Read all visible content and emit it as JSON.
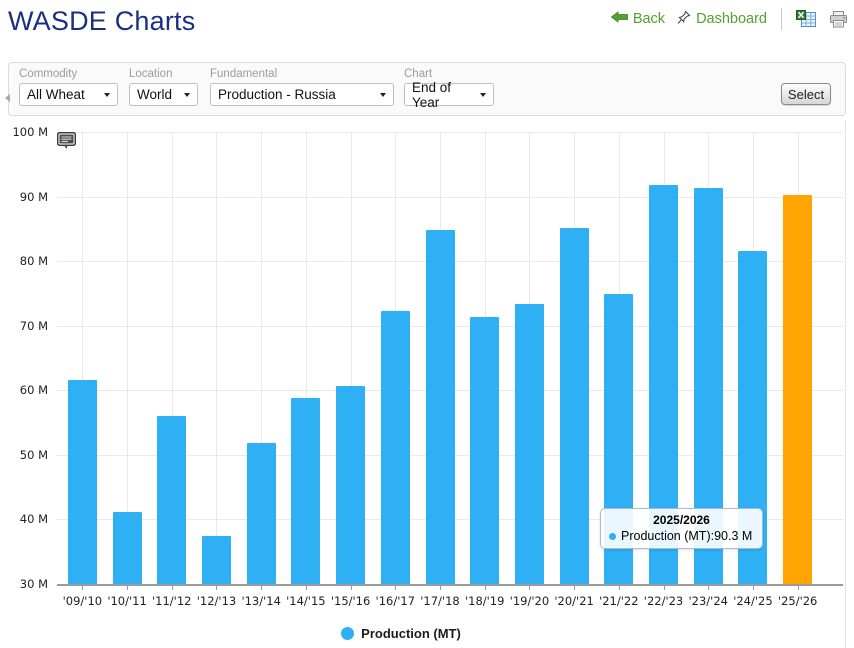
{
  "header": {
    "title": "WASDE Charts",
    "back_label": "Back",
    "dashboard_label": "Dashboard"
  },
  "filters": {
    "fields": [
      {
        "label": "Commodity",
        "value": "All Wheat"
      },
      {
        "label": "Location",
        "value": "World"
      },
      {
        "label": "Fundamental",
        "value": "Production - Russia"
      },
      {
        "label": "Chart",
        "value": "End of Year"
      }
    ],
    "select_label": "Select"
  },
  "chart_data": {
    "type": "bar",
    "title": "",
    "categories": [
      "'09/'10",
      "'10/'11",
      "'11/'12",
      "'12/'13",
      "'13/'14",
      "'14/'15",
      "'15/'16",
      "'16/'17",
      "'17/'18",
      "'18/'19",
      "'19/'20",
      "'20/'21",
      "'21/'22",
      "'22/'23",
      "'23/'24",
      "'24/'25",
      "'25/'26"
    ],
    "series": [
      {
        "name": "Production (MT)",
        "values": [
          61.6,
          41.2,
          56.0,
          37.4,
          51.8,
          58.8,
          60.7,
          72.3,
          84.9,
          71.4,
          73.3,
          85.2,
          74.9,
          91.8,
          91.4,
          81.5,
          90.3
        ]
      }
    ],
    "ylim": [
      30,
      100
    ],
    "ytick_step": 10,
    "ytick_labels": [
      "30 M",
      "40 M",
      "50 M",
      "60 M",
      "70 M",
      "80 M",
      "90 M",
      "100 M"
    ],
    "grid": true,
    "legend_position": "bottom",
    "highlight_index": 16
  },
  "tooltip": {
    "title": "2025/2026",
    "label": "Production (MT):",
    "value": "90.3 M"
  },
  "colors": {
    "bar_blue": "#2FB0F5",
    "bar_orange": "#FFA400",
    "title_navy": "#1B2F80",
    "link_green": "#55A02F",
    "gridline": "#E9E9E9",
    "axis_gray": "#9A9A9A"
  },
  "icons": {
    "back": "back-arrow-icon",
    "dashboard": "pin-icon",
    "export": "excel-export-icon",
    "print": "printer-icon",
    "annotation": "comment-icon"
  }
}
